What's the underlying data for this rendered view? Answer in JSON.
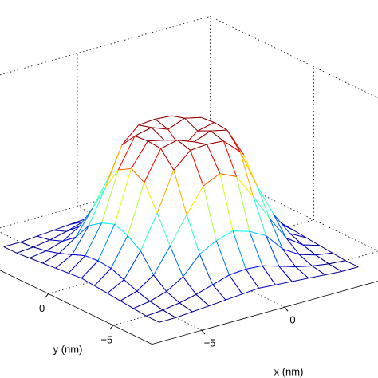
{
  "chart_data": {
    "type": "mesh",
    "colormap": "jet",
    "grid": true,
    "xlabel": "x (nm)",
    "ylabel": "y (nm)",
    "x": [
      -6,
      -5,
      -4,
      -3,
      -2,
      -1,
      0,
      1,
      2,
      3,
      4,
      5,
      6
    ],
    "y": [
      -6,
      -5,
      -4,
      -3,
      -2,
      -1,
      0,
      1,
      2,
      3,
      4,
      5,
      6
    ],
    "z": [
      [
        0,
        0,
        0.01,
        0.02,
        0.03,
        0.04,
        0.05,
        0.04,
        0.03,
        0.02,
        0.01,
        0,
        0
      ],
      [
        0,
        0.01,
        0.03,
        0.06,
        0.1,
        0.14,
        0.15,
        0.14,
        0.1,
        0.06,
        0.03,
        0.01,
        0
      ],
      [
        0.01,
        0.03,
        0.07,
        0.15,
        0.29,
        0.36,
        0.4,
        0.36,
        0.29,
        0.15,
        0.07,
        0.03,
        0.01
      ],
      [
        0.02,
        0.06,
        0.15,
        0.34,
        0.55,
        0.74,
        0.8,
        0.74,
        0.55,
        0.34,
        0.15,
        0.06,
        0.02
      ],
      [
        0.03,
        0.1,
        0.29,
        0.55,
        0.85,
        0.97,
        0.98,
        0.97,
        0.85,
        0.55,
        0.29,
        0.1,
        0.03
      ],
      [
        0.04,
        0.14,
        0.36,
        0.74,
        0.97,
        1.0,
        0.95,
        1.0,
        0.97,
        0.74,
        0.36,
        0.14,
        0.04
      ],
      [
        0.05,
        0.15,
        0.4,
        0.8,
        0.98,
        0.95,
        0.85,
        0.95,
        0.98,
        0.8,
        0.4,
        0.15,
        0.05
      ],
      [
        0.04,
        0.14,
        0.36,
        0.74,
        0.97,
        1.0,
        0.95,
        1.0,
        0.97,
        0.74,
        0.36,
        0.14,
        0.04
      ],
      [
        0.03,
        0.1,
        0.29,
        0.55,
        0.85,
        0.97,
        0.98,
        0.97,
        0.85,
        0.55,
        0.29,
        0.1,
        0.03
      ],
      [
        0.02,
        0.06,
        0.15,
        0.34,
        0.55,
        0.74,
        0.8,
        0.74,
        0.55,
        0.34,
        0.15,
        0.06,
        0.02
      ],
      [
        0.01,
        0.03,
        0.07,
        0.15,
        0.29,
        0.36,
        0.4,
        0.36,
        0.29,
        0.15,
        0.07,
        0.03,
        0.01
      ],
      [
        0,
        0.01,
        0.03,
        0.06,
        0.1,
        0.14,
        0.15,
        0.14,
        0.1,
        0.06,
        0.03,
        0.01,
        0
      ],
      [
        0,
        0,
        0.01,
        0.02,
        0.03,
        0.04,
        0.05,
        0.04,
        0.03,
        0.02,
        0.01,
        0,
        0
      ]
    ],
    "xlim": [
      -8,
      8
    ],
    "ylim": [
      -8,
      8
    ],
    "zlim": [
      0,
      1.2
    ],
    "xticks": [
      {
        "value": -5,
        "label": "−5"
      },
      0
    ],
    "yticks": [
      {
        "value": -5,
        "label": "−5"
      },
      0
    ]
  }
}
